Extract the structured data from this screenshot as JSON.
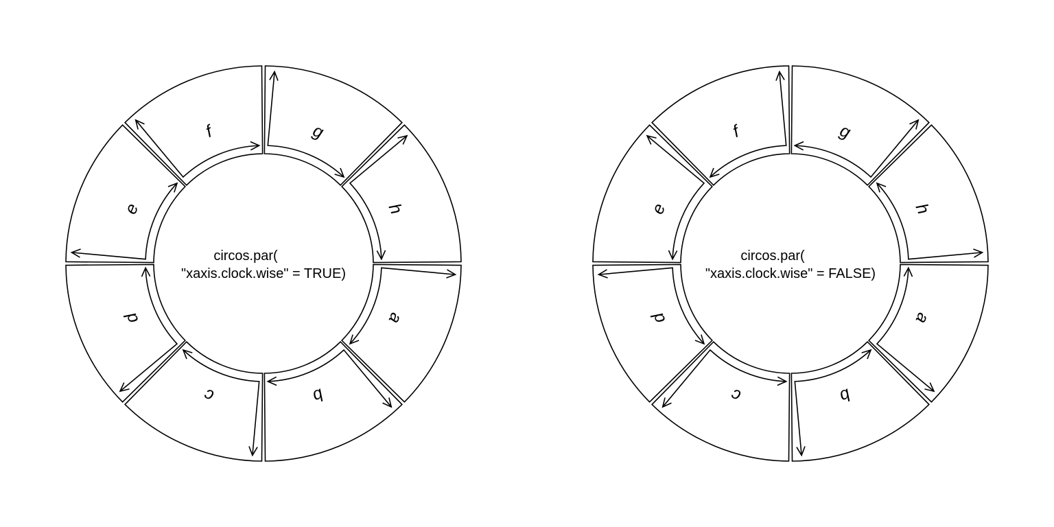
{
  "diagrams": [
    {
      "id": "clockwise-true",
      "caption_line1": "circos.par(",
      "caption_line2": "\"xaxis.clock.wise\" = TRUE)",
      "clockwise": true,
      "sectors": [
        "a",
        "b",
        "c",
        "d",
        "e",
        "f",
        "g",
        "h"
      ]
    },
    {
      "id": "clockwise-false",
      "caption_line1": "circos.par(",
      "caption_line2": "\"xaxis.clock.wise\" = FALSE)",
      "clockwise": false,
      "sectors": [
        "a",
        "b",
        "c",
        "d",
        "e",
        "f",
        "g",
        "h"
      ]
    }
  ]
}
